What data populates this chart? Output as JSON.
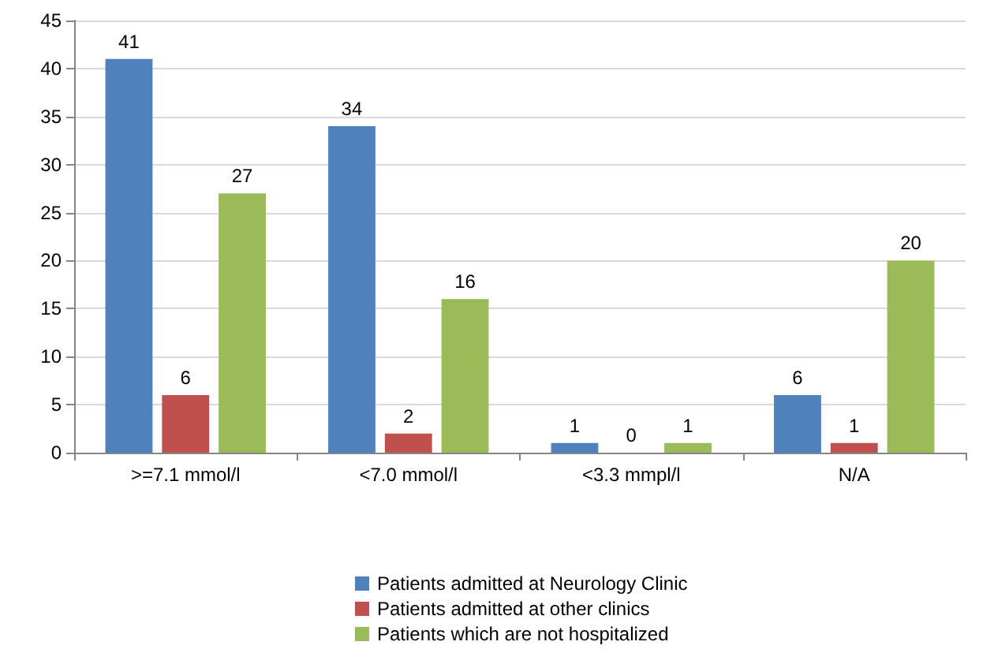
{
  "chart_data": {
    "type": "bar",
    "categories": [
      ">=7.1 mmol/l",
      "<7.0 mmol/l",
      "<3.3 mmpl/l",
      "N/A"
    ],
    "series": [
      {
        "name": "Patients admitted at Neurology Clinic",
        "color": "#4f81bd",
        "values": [
          41,
          34,
          1,
          6
        ]
      },
      {
        "name": "Patients admitted at other clinics",
        "color": "#c0504d",
        "values": [
          6,
          2,
          0,
          1
        ]
      },
      {
        "name": "Patients which are not hospitalized",
        "color": "#9bbb59",
        "values": [
          27,
          16,
          1,
          20
        ]
      }
    ],
    "ylim": [
      0,
      45
    ],
    "yticks": [
      0,
      5,
      10,
      15,
      20,
      25,
      30,
      35,
      40,
      45
    ],
    "grid": "y",
    "legend": "bottom",
    "data_labels": true
  }
}
